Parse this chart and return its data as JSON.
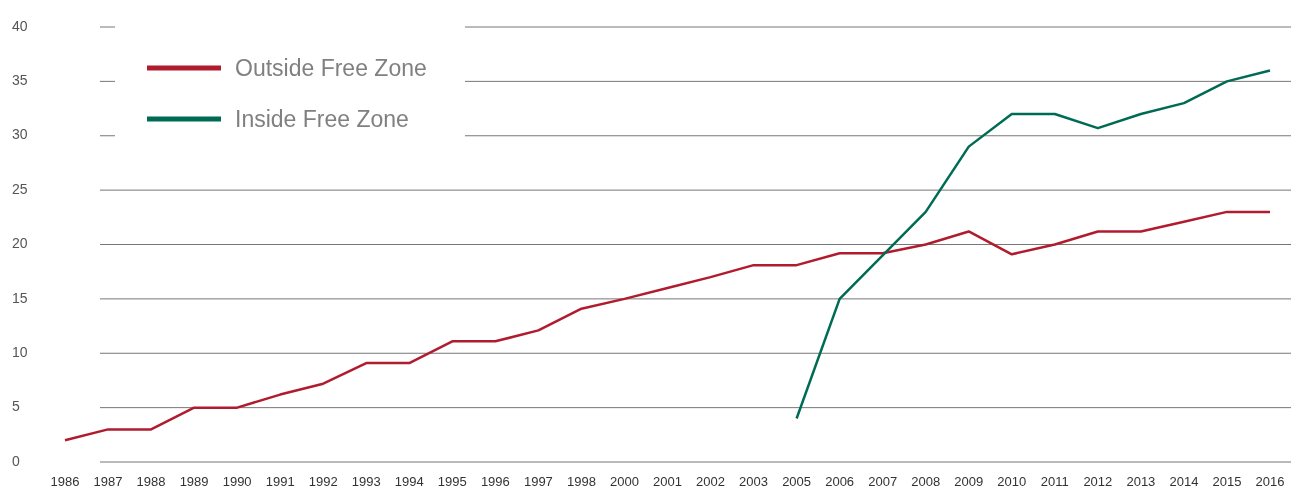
{
  "chart_data": {
    "type": "line",
    "categories": [
      "1986",
      "1987",
      "1988",
      "1989",
      "1990",
      "1991",
      "1992",
      "1993",
      "1994",
      "1995",
      "1996",
      "1997",
      "1998",
      "2000",
      "2001",
      "2002",
      "2003",
      "2005",
      "2006",
      "2007",
      "2008",
      "2009",
      "2010",
      "2011",
      "2012",
      "2013",
      "2014",
      "2015",
      "2016"
    ],
    "series": [
      {
        "name": "Outside Free Zone",
        "color": "#b01c2e",
        "values": [
          2,
          3,
          3,
          5,
          5,
          6.2,
          7.2,
          9.1,
          9.1,
          11.1,
          11.1,
          12.1,
          14.1,
          15,
          16,
          17,
          18.1,
          18.1,
          19.2,
          19.2,
          20,
          21.2,
          19.1,
          20,
          21.2,
          21.2,
          22.1,
          23,
          23
        ]
      },
      {
        "name": "Inside Free Zone",
        "color": "#006b54",
        "values": [
          null,
          null,
          null,
          null,
          null,
          null,
          null,
          null,
          null,
          null,
          null,
          null,
          null,
          null,
          null,
          null,
          null,
          4,
          15,
          19,
          23,
          29,
          32,
          32,
          30.7,
          32,
          33,
          35,
          36
        ]
      }
    ],
    "ylim": [
      0,
      40
    ],
    "yticks": [
      0,
      5,
      10,
      15,
      20,
      25,
      30,
      35,
      40
    ],
    "grid": "y",
    "legend": "top left",
    "marker": "none",
    "line_style": "solid"
  }
}
